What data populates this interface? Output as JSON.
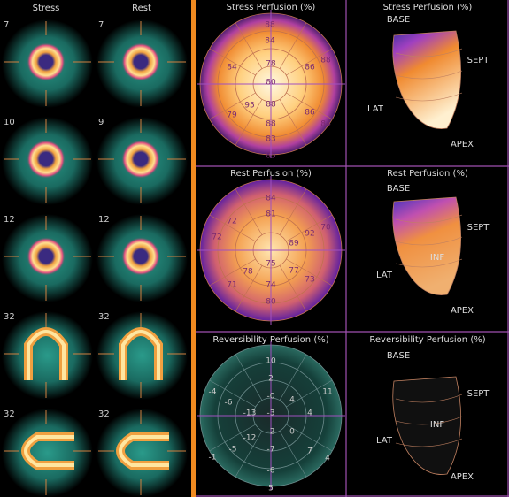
{
  "slices": {
    "headers": [
      "Stress",
      "Rest"
    ],
    "rows": [
      [
        "7",
        "7"
      ],
      [
        "10",
        "9"
      ],
      [
        "12",
        "12"
      ],
      [
        "32",
        "32"
      ],
      [
        "32",
        "32"
      ]
    ]
  },
  "maps": [
    {
      "title": "Stress Perfusion (%)",
      "values": [
        "88",
        "84",
        "78",
        "86",
        "84",
        "88",
        "80",
        "79",
        "95",
        "88",
        "86",
        "84",
        "88",
        "83",
        "85"
      ]
    },
    {
      "title": "Rest Perfusion (%)",
      "values": [
        "84",
        "81",
        "72",
        "92",
        "70",
        "72",
        "89",
        "75",
        "78",
        "77",
        "73",
        "74",
        "71",
        "80"
      ]
    },
    {
      "title": "Reversibility Perfusion (%)",
      "values": [
        "10",
        "2",
        "-6",
        "-0",
        "4",
        "11",
        "-13",
        "-3",
        "4",
        "-4",
        "-1",
        "-5",
        "-12",
        "-2",
        "0",
        "-7",
        "7",
        "4",
        "-6",
        "5"
      ]
    }
  ],
  "views": [
    {
      "title": "Stress Perfusion (%)",
      "labels": [
        "BASE",
        "SEPT",
        "LAT",
        "APEX"
      ]
    },
    {
      "title": "Rest Perfusion (%)",
      "labels": [
        "BASE",
        "SEPT",
        "INF",
        "LAT",
        "APEX"
      ]
    },
    {
      "title": "Reversibility Perfusion (%)",
      "labels": [
        "BASE",
        "SEPT",
        "INF",
        "LAT",
        "APEX"
      ]
    }
  ]
}
